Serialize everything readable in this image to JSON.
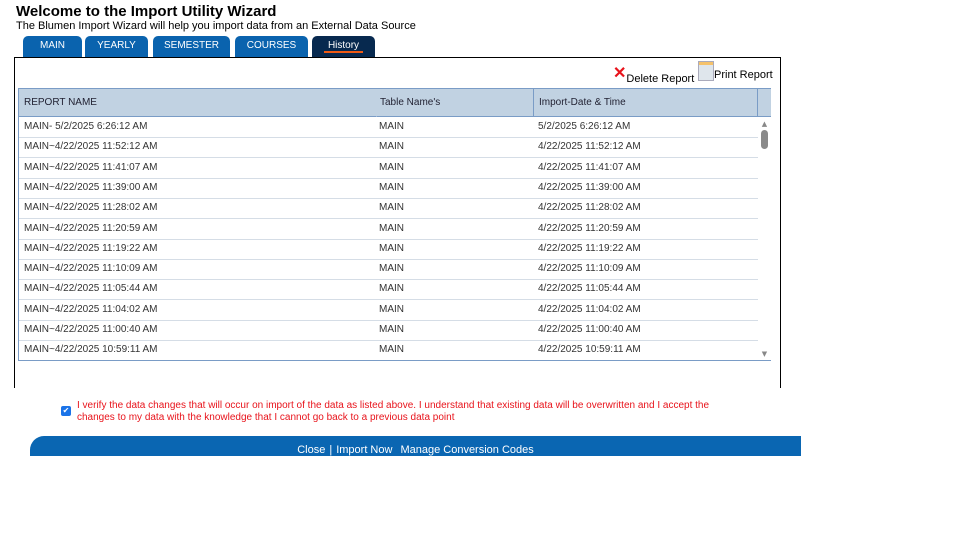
{
  "title": "Welcome to the Import Utility Wizard",
  "subtitle": "The Blumen Import Wizard will help you import data from an External Data Source",
  "tabs": [
    {
      "label": "MAIN"
    },
    {
      "label": "YEARLY"
    },
    {
      "label": "SEMESTER"
    },
    {
      "label": "COURSES"
    },
    {
      "label": "History",
      "active": true
    }
  ],
  "actions": {
    "delete": "Delete Report",
    "print": "Print Report"
  },
  "columns": [
    "REPORT NAME",
    "Table Name's",
    "Import-Date & Time"
  ],
  "rows": [
    [
      "MAIN- 5/2/2025 6:26:12 AM",
      "MAIN",
      "5/2/2025 6:26:12 AM"
    ],
    [
      "MAIN~4/22/2025 11:52:12 AM",
      "MAIN",
      "4/22/2025 11:52:12 AM"
    ],
    [
      "MAIN~4/22/2025 11:41:07 AM",
      "MAIN",
      "4/22/2025 11:41:07 AM"
    ],
    [
      "MAIN~4/22/2025 11:39:00 AM",
      "MAIN",
      "4/22/2025 11:39:00 AM"
    ],
    [
      "MAIN~4/22/2025 11:28:02 AM",
      "MAIN",
      "4/22/2025 11:28:02 AM"
    ],
    [
      "MAIN~4/22/2025 11:20:59 AM",
      "MAIN",
      "4/22/2025 11:20:59 AM"
    ],
    [
      "MAIN~4/22/2025 11:19:22 AM",
      "MAIN",
      "4/22/2025 11:19:22 AM"
    ],
    [
      "MAIN~4/22/2025 11:10:09 AM",
      "MAIN",
      "4/22/2025 11:10:09 AM"
    ],
    [
      "MAIN~4/22/2025 11:05:44 AM",
      "MAIN",
      "4/22/2025 11:05:44 AM"
    ],
    [
      "MAIN~4/22/2025 11:04:02 AM",
      "MAIN",
      "4/22/2025 11:04:02 AM"
    ],
    [
      "MAIN~4/22/2025 11:00:40 AM",
      "MAIN",
      "4/22/2025 11:00:40 AM"
    ],
    [
      "MAIN~4/22/2025 10:59:11 AM",
      "MAIN",
      "4/22/2025 10:59:11 AM"
    ]
  ],
  "verify_text": "I verify the data changes that will occur on import of the data as listed above. I understand that existing data will be overwritten and I accept the changes to my data with the knowledge that I cannot go back to a previous data point",
  "verify_checked": true,
  "footer": {
    "close": "Close",
    "import": "Import Now",
    "manage": "Manage Conversion Codes"
  },
  "colors": {
    "tab": "#0a63ae",
    "tab_active": "#07294f",
    "accent": "#f05a14",
    "header": "#c1d2e2",
    "warning": "#e8131b"
  }
}
